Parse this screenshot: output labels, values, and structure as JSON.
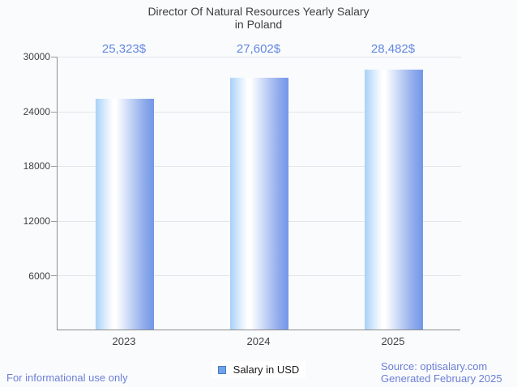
{
  "title": {
    "line1": "Director Of Natural Resources Yearly Salary",
    "line2": "in Poland"
  },
  "chart_data": {
    "type": "bar",
    "title": "Director Of Natural Resources Yearly Salary in Poland",
    "categories": [
      "2023",
      "2024",
      "2025"
    ],
    "values": [
      25323,
      27602,
      28482
    ],
    "value_labels": [
      "25,323$",
      "27,602$",
      "28,482$"
    ],
    "series": [
      {
        "name": "Salary in USD",
        "values": [
          25323,
          27602,
          28482
        ]
      }
    ],
    "xlabel": "",
    "ylabel": "",
    "ylim": [
      0,
      30000
    ],
    "yticks": [
      "30000",
      "24000",
      "18000",
      "12000",
      "6000"
    ],
    "grid": true,
    "legend_position": "bottom",
    "bar_gradient": [
      "#a7d1f9",
      "#ffffff",
      "#7296e8"
    ]
  },
  "legend": {
    "label": "Salary in USD"
  },
  "footer": {
    "left": "For informational use only",
    "source": "Source: optisalary.com",
    "generated": "Generated February 2025"
  },
  "colors": {
    "background": "#fafbfd",
    "title_text": "#3e3e3e",
    "value_label": "#6288e0",
    "axis": "#8d8d8d",
    "gridline": "#e3e5e8",
    "tick_label": "#414141",
    "legend_swatch_fill": "#6fa3ea",
    "legend_swatch_border": "#4a80c4",
    "footer_text": "#6d80d4"
  }
}
